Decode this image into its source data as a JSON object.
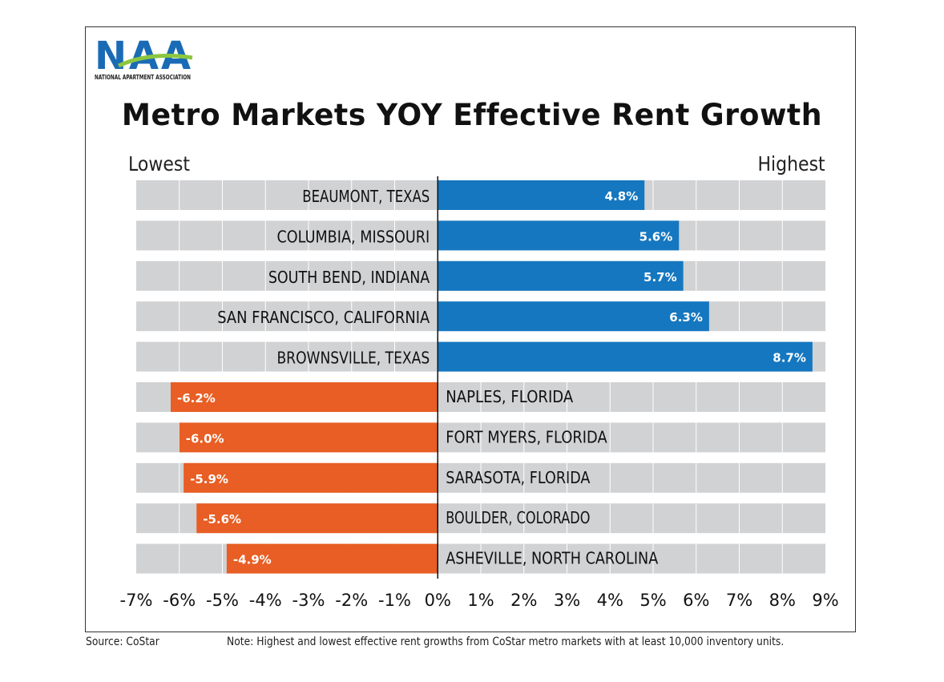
{
  "logo": {
    "text": "NAA",
    "subtext": "NATIONAL APARTMENT ASSOCIATION",
    "colors": [
      "#1a6bb5",
      "#8cc63f"
    ]
  },
  "title": "Metro Markets YOY Effective Rent Growth",
  "lowest_label": "Lowest",
  "highest_label": "Highest",
  "source": "Source: CoStar",
  "note": "Note: Highest and lowest effective rent growths from CoStar metro markets with at least 10,000 inventory units.",
  "chart_data": {
    "type": "bar",
    "orientation": "horizontal",
    "categories": [
      "BEAUMONT, TEXAS",
      "COLUMBIA, MISSOURI",
      "SOUTH BEND, INDIANA",
      "SAN FRANCISCO, CALIFORNIA",
      "BROWNSVILLE, TEXAS",
      "NAPLES, FLORIDA",
      "FORT MYERS, FLORIDA",
      "SARASOTA, FLORIDA",
      "BOULDER, COLORADO",
      "ASHEVILLE, NORTH CAROLINA"
    ],
    "values": [
      4.8,
      5.6,
      5.7,
      6.3,
      8.7,
      -6.2,
      -6.0,
      -5.9,
      -5.6,
      -4.9
    ],
    "data_labels": [
      "4.8%",
      "5.6%",
      "5.7%",
      "6.3%",
      "8.7%",
      "-6.2%",
      "-6.0%",
      "-5.9%",
      "-5.6%",
      "-4.9%"
    ],
    "xlim": [
      -7,
      9
    ],
    "ticks": [
      "-7%",
      "-6%",
      "-5%",
      "-4%",
      "-3%",
      "-2%",
      "-1%",
      "0%",
      "1%",
      "2%",
      "3%",
      "4%",
      "5%",
      "6%",
      "7%",
      "8%",
      "9%"
    ],
    "grid": true,
    "colors": {
      "positive": "#1577c0",
      "negative": "#e85e24",
      "track": "#d1d2d4"
    }
  }
}
